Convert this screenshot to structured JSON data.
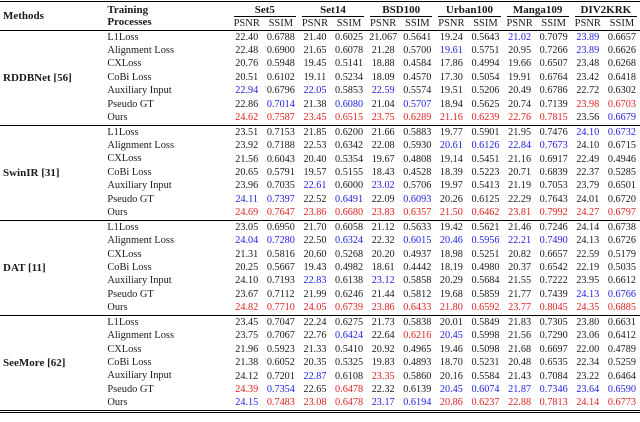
{
  "colors": {
    "text": "#1b1b1b",
    "second_best_blue": "#2323dd",
    "best_red": "#dd2222"
  },
  "table": {
    "headers": {
      "methods": "Methods",
      "training_line1": "Training",
      "training_line2": "Processes",
      "psnr": "PSNR",
      "ssim": "SSIM"
    },
    "datasets": [
      "Set5",
      "Set14",
      "BSD100",
      "Urban100",
      "Manga109",
      "DIV2KRK"
    ],
    "groups": [
      {
        "method": "RDDBNet [56]",
        "rows": [
          {
            "process": "L1Loss",
            "values": [
              "22.40",
              "0.6788",
              "21.40",
              "0.6025",
              "21.067",
              "0.5641",
              "19.24",
              "0.5643",
              "21.02",
              "0.7079",
              "23.89",
              "0.6657"
            ],
            "colors": "kkkkkkkkbkbk"
          },
          {
            "process": "Alignment Loss",
            "values": [
              "22.48",
              "0.6900",
              "21.65",
              "0.6078",
              "21.28",
              "0.5700",
              "19.61",
              "0.5751",
              "20.95",
              "0.7266",
              "23.89",
              "0.6626"
            ],
            "colors": "kkkkkkbkkkbk"
          },
          {
            "process": "CXLoss",
            "values": [
              "20.76",
              "0.5948",
              "19.45",
              "0.5141",
              "18.88",
              "0.4584",
              "17.86",
              "0.4994",
              "19.66",
              "0.6507",
              "23.48",
              "0.6268"
            ],
            "colors": "kkkkkkkkkkkk"
          },
          {
            "process": "CoBi Loss",
            "values": [
              "20.51",
              "0.6102",
              "19.11",
              "0.5234",
              "18.09",
              "0.4570",
              "17.30",
              "0.5054",
              "19.91",
              "0.6764",
              "23.42",
              "0.6418"
            ],
            "colors": "kkkkkkkkkkkk"
          },
          {
            "process": "Auxiliary Input",
            "values": [
              "22.94",
              "0.6796",
              "22.05",
              "0.5853",
              "22.59",
              "0.5574",
              "19.51",
              "0.5206",
              "20.49",
              "0.6786",
              "22.72",
              "0.6302"
            ],
            "colors": "bkbkbkkkkkkk"
          },
          {
            "process": "Pseudo GT",
            "values": [
              "22.86",
              "0.7014",
              "21.38",
              "0.6080",
              "21.04",
              "0.5707",
              "18.94",
              "0.5625",
              "20.74",
              "0.7139",
              "23.98",
              "0.6703"
            ],
            "colors": "kbkbkbkkkkrr"
          },
          {
            "process": "Ours",
            "values": [
              "24.62",
              "0.7587",
              "23.45",
              "0.6515",
              "23.75",
              "0.6289",
              "21.16",
              "0.6239",
              "22.76",
              "0.7815",
              "23.56",
              "0.6679"
            ],
            "colors": "rrrrrrrrrrkb"
          }
        ]
      },
      {
        "method": "SwinIR [31]",
        "rows": [
          {
            "process": "L1Loss",
            "values": [
              "23.51",
              "0.7153",
              "21.85",
              "0.6200",
              "21.66",
              "0.5883",
              "19.77",
              "0.5901",
              "21.95",
              "0.7476",
              "24.10",
              "0.6732"
            ],
            "colors": "kkkkkkkkkkbb"
          },
          {
            "process": "Alignment Loss",
            "values": [
              "23.92",
              "0.7188",
              "22.53",
              "0.6342",
              "22.08",
              "0.5930",
              "20.61",
              "0.6126",
              "22.84",
              "0.7673",
              "24.10",
              "0.6715"
            ],
            "colors": "kkkkkkbbbbkk"
          },
          {
            "process": "CXLoss",
            "values": [
              "21.56",
              "0.6043",
              "20.40",
              "0.5354",
              "19.67",
              "0.4808",
              "19.14",
              "0.5451",
              "21.16",
              "0.6917",
              "22.49",
              "0.4946"
            ],
            "colors": "kkkkkkkkkkkk"
          },
          {
            "process": "CoBi Loss",
            "values": [
              "20.65",
              "0.5791",
              "19.57",
              "0.5155",
              "18.43",
              "0.4528",
              "18.39",
              "0.5223",
              "20.71",
              "0.6839",
              "22.37",
              "0.5285"
            ],
            "colors": "kkkkkkkkkkkk"
          },
          {
            "process": "Auxiliary Input",
            "values": [
              "23.96",
              "0.7035",
              "22.61",
              "0.6000",
              "23.02",
              "0.5706",
              "19.97",
              "0.5413",
              "21.19",
              "0.7053",
              "23.79",
              "0.6501"
            ],
            "colors": "kkbkbkkkkkkk"
          },
          {
            "process": "Pseudo GT",
            "values": [
              "24.11",
              "0.7397",
              "22.52",
              "0.6491",
              "22.09",
              "0.6093",
              "20.26",
              "0.6125",
              "22.29",
              "0.7643",
              "24.01",
              "0.6720"
            ],
            "colors": "bbkbkbkkkkkk"
          },
          {
            "process": "Ours",
            "values": [
              "24.69",
              "0.7647",
              "23.86",
              "0.6680",
              "23.83",
              "0.6357",
              "21.50",
              "0.6462",
              "23.81",
              "0.7992",
              "24.27",
              "0.6797"
            ],
            "colors": "rrrrrrrrrrrr"
          }
        ]
      },
      {
        "method": "DAT [11]",
        "rows": [
          {
            "process": "L1Loss",
            "values": [
              "23.05",
              "0.6950",
              "21.70",
              "0.6058",
              "21.12",
              "0.5633",
              "19.42",
              "0.5621",
              "21.46",
              "0.7246",
              "24.14",
              "0.6738"
            ],
            "colors": "kkkkkkkkkkkk"
          },
          {
            "process": "Alignment Loss",
            "values": [
              "24.04",
              "0.7280",
              "22.50",
              "0.6324",
              "22.32",
              "0.6015",
              "20.46",
              "0.5956",
              "22.21",
              "0.7490",
              "24.13",
              "0.6726"
            ],
            "colors": "bbkbkbbbbbkk"
          },
          {
            "process": "CXLoss",
            "values": [
              "21.31",
              "0.5816",
              "20.60",
              "0.5268",
              "20.20",
              "0.4937",
              "18.98",
              "0.5251",
              "20.82",
              "0.6657",
              "22.59",
              "0.5179"
            ],
            "colors": "kkkkkkkkkkkk"
          },
          {
            "process": "CoBi Loss",
            "values": [
              "20.25",
              "0.5667",
              "19.43",
              "0.4982",
              "18.61",
              "0.4442",
              "18.19",
              "0.4980",
              "20.37",
              "0.6542",
              "22.19",
              "0.5035"
            ],
            "colors": "kkkkkkkkkkkk"
          },
          {
            "process": "Auxiliary Input",
            "values": [
              "24.10",
              "0.7193",
              "22.83",
              "0.6138",
              "23.12",
              "0.5858",
              "20.29",
              "0.5684",
              "21.55",
              "0.7222",
              "23.95",
              "0.6612"
            ],
            "colors": "kkbkbkkkkkkk"
          },
          {
            "process": "Pseudo GT",
            "values": [
              "23.67",
              "0.7112",
              "21.99",
              "0.6246",
              "21.44",
              "0.5812",
              "19.68",
              "0.5859",
              "21.77",
              "0.7439",
              "24.13",
              "0.6766"
            ],
            "colors": "kkkkkkkkkkbb"
          },
          {
            "process": "Ours",
            "values": [
              "24.82",
              "0.7710",
              "24.05",
              "0.6739",
              "23.86",
              "0.6433",
              "21.80",
              "0.6592",
              "23.77",
              "0.8045",
              "24.35",
              "0.6885"
            ],
            "colors": "rrrrrrrrrrrr"
          }
        ]
      },
      {
        "method": "SeeMore [62]",
        "rows": [
          {
            "process": "L1Loss",
            "values": [
              "23.45",
              "0.7047",
              "22.24",
              "0.6275",
              "21.73",
              "0.5838",
              "20.01",
              "0.5849",
              "21.83",
              "0.7305",
              "23.80",
              "0.6631"
            ],
            "colors": "kkkkkkkkkkkk"
          },
          {
            "process": "Alignment Loss",
            "values": [
              "23.75",
              "0.7067",
              "22.76",
              "0.6424",
              "22.64",
              "0.6216",
              "20.45",
              "0.5998",
              "21.56",
              "0.7290",
              "23.06",
              "0.6412"
            ],
            "colors": "kkkbkrbkkkkk"
          },
          {
            "process": "CXLoss",
            "values": [
              "21.96",
              "0.5923",
              "21.33",
              "0.5410",
              "20.92",
              "0.4965",
              "19.46",
              "0.5098",
              "21.68",
              "0.6697",
              "22.00",
              "0.4789"
            ],
            "colors": "kkkkkkkkkkkk"
          },
          {
            "process": "CoBi Loss",
            "values": [
              "21.38",
              "0.6052",
              "20.35",
              "0.5325",
              "19.83",
              "0.4893",
              "18.70",
              "0.5231",
              "20.48",
              "0.6535",
              "22.34",
              "0.5259"
            ],
            "colors": "kkkkkkkkkkkk"
          },
          {
            "process": "Auxiliary Input",
            "values": [
              "24.12",
              "0.7201",
              "22.87",
              "0.6108",
              "23.35",
              "0.5860",
              "20.16",
              "0.5584",
              "21.43",
              "0.7084",
              "23.22",
              "0.6464"
            ],
            "colors": "kkbkrkkkkkkk"
          },
          {
            "process": "Pseudo GT",
            "values": [
              "24.39",
              "0.7354",
              "22.65",
              "0.6478",
              "22.32",
              "0.6139",
              "20.45",
              "0.6074",
              "21.87",
              "0.7346",
              "23.64",
              "0.6590"
            ],
            "colors": "rbkrkkbbbbbb"
          },
          {
            "process": "Ours",
            "values": [
              "24.15",
              "0.7483",
              "23.08",
              "0.6478",
              "23.17",
              "0.6194",
              "20.86",
              "0.6237",
              "22.88",
              "0.7813",
              "24.14",
              "0.6773"
            ],
            "colors": "brrrbbrrrrrr"
          }
        ]
      }
    ]
  }
}
